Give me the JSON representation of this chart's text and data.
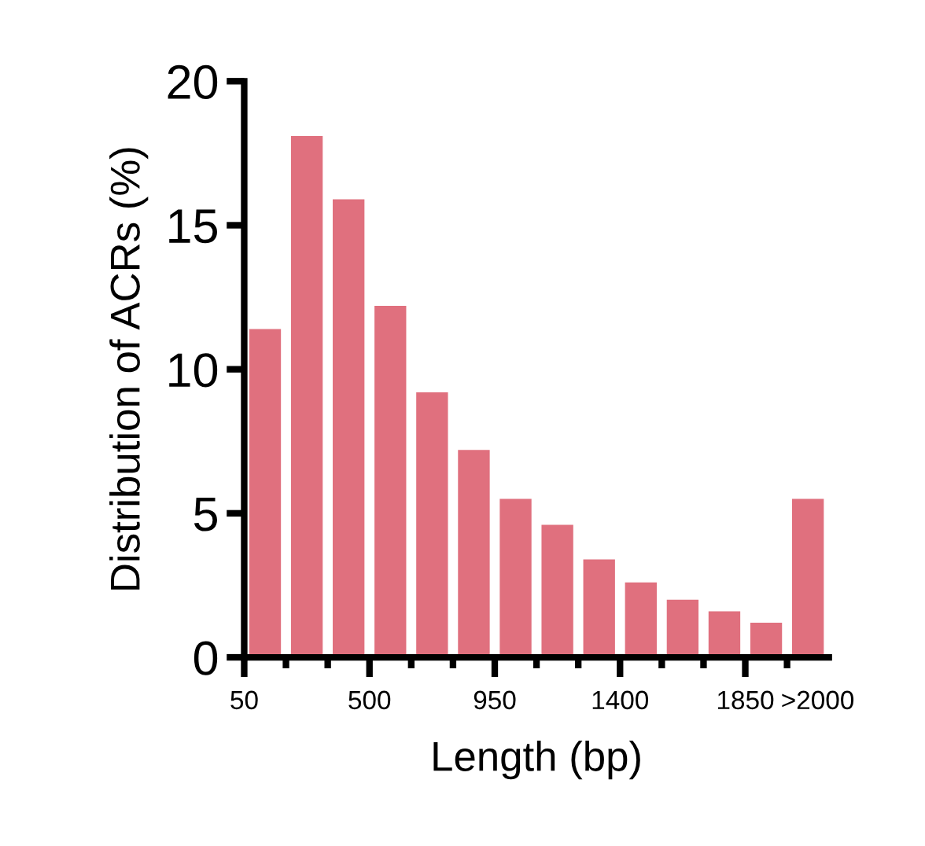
{
  "chart_data": {
    "type": "histogram",
    "xlabel": "Length (bp)",
    "ylabel": "Distribution of ACRs (%)",
    "bins": [
      50,
      200,
      350,
      500,
      650,
      800,
      950,
      1100,
      1250,
      1400,
      1550,
      1700,
      1850,
      2000,
      2150
    ],
    "values": [
      11.4,
      18.1,
      15.9,
      12.2,
      9.2,
      7.2,
      5.5,
      4.6,
      3.4,
      2.6,
      2.0,
      1.6,
      1.2,
      5.5
    ],
    "color": "#e0707e",
    "xlim": [
      50,
      2150
    ],
    "xticks": [
      50,
      {
        "value": 200,
        "label": null
      },
      {
        "value": 350,
        "label": null
      },
      500,
      {
        "value": 650,
        "label": null
      },
      {
        "value": 800,
        "label": null
      },
      950,
      {
        "value": 1100,
        "label": null
      },
      {
        "value": 1250,
        "label": null
      },
      1400,
      {
        "value": 1550,
        "label": null
      },
      {
        "value": 1700,
        "label": null
      },
      1850,
      {
        "value": 2000,
        "label": null
      },
      {
        "value": 2110,
        "label": ">2000"
      }
    ],
    "ylim": [
      0,
      20
    ],
    "yticks": [
      0,
      5,
      10,
      15,
      20
    ],
    "grid": false,
    "legend": false
  }
}
